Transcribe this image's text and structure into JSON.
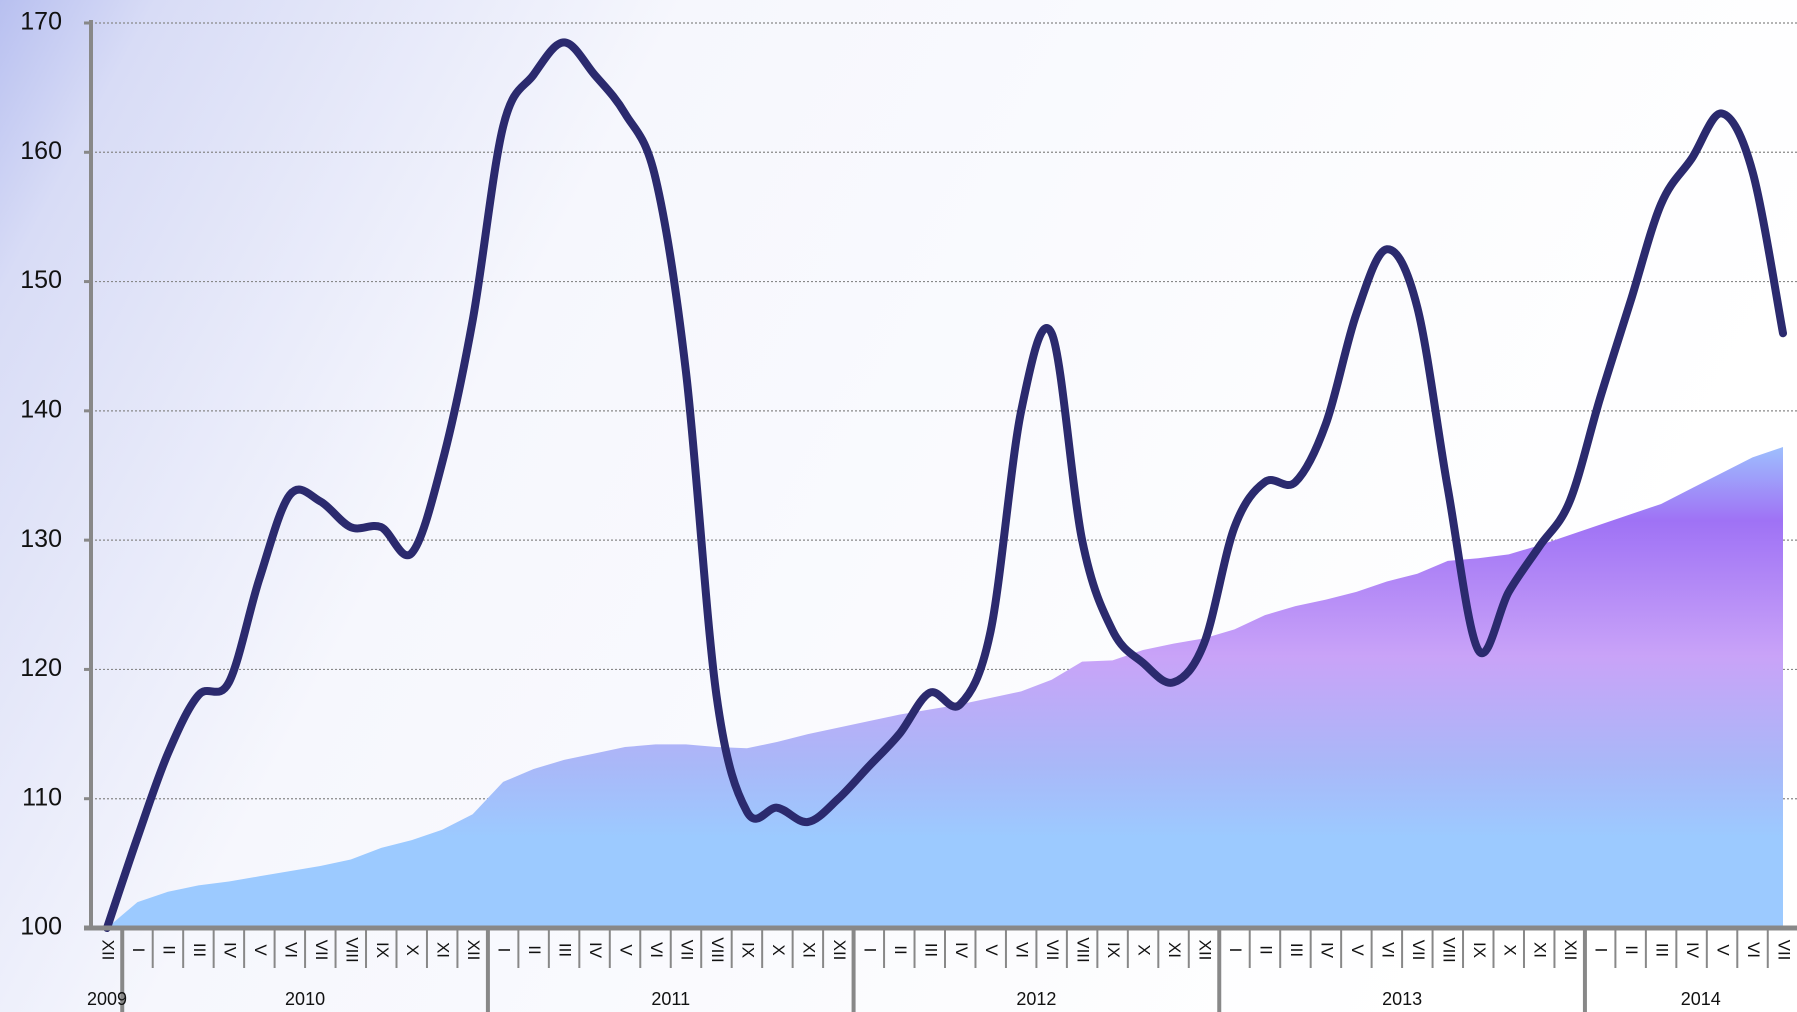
{
  "chart_data": {
    "type": "line",
    "categories": [
      "XII",
      "I",
      "II",
      "III",
      "IV",
      "V",
      "VI",
      "VII",
      "VIII",
      "IX",
      "X",
      "XI",
      "XII",
      "I",
      "II",
      "III",
      "IV",
      "V",
      "VI",
      "VII",
      "VIII",
      "IX",
      "X",
      "XI",
      "XII",
      "I",
      "II",
      "III",
      "IV",
      "V",
      "VI",
      "VII",
      "VIII",
      "IX",
      "X",
      "XI",
      "XII",
      "I",
      "II",
      "III",
      "IV",
      "V",
      "VI",
      "VII",
      "VIII",
      "IX",
      "X",
      "XI",
      "XII",
      "I",
      "II",
      "III",
      "IV",
      "V",
      "VI",
      "VII"
    ],
    "years": [
      "2009",
      "2010",
      "2011",
      "2012",
      "2013",
      "2014"
    ],
    "series": [
      {
        "kind": "area",
        "color": "#9f72f5",
        "values": [
          100,
          102,
          102.8,
          103.3,
          103.6,
          104,
          104.4,
          104.8,
          105.3,
          106.2,
          106.8,
          107.6,
          108.8,
          111.3,
          112.3,
          113,
          113.5,
          114,
          114.2,
          114.2,
          114,
          113.9,
          114.4,
          115,
          115.5,
          116,
          116.5,
          116.9,
          117.3,
          117.8,
          118.3,
          119.2,
          120.6,
          120.7,
          121.5,
          122,
          122.4,
          123.1,
          124.2,
          124.9,
          125.4,
          126,
          126.8,
          127.4,
          128.4,
          128.6,
          128.9,
          129.6,
          130.4,
          131.2,
          132,
          132.8,
          134,
          135.2,
          136.4,
          137.2
        ]
      },
      {
        "kind": "line",
        "color": "#2b2a6e",
        "values": [
          100,
          107,
          113.5,
          118,
          119,
          127,
          133.5,
          133,
          131,
          131,
          129,
          136,
          147,
          162,
          166,
          168.5,
          166,
          163,
          158,
          143,
          118,
          109,
          109.3,
          108.2,
          110,
          112.5,
          115,
          118.2,
          117.3,
          123,
          140,
          146,
          130,
          123,
          120.5,
          119,
          122,
          131,
          134.5,
          134.5,
          139,
          147.5,
          152.5,
          148,
          134,
          121.5,
          126,
          129.5,
          133,
          141,
          148.5,
          156,
          159.5,
          163,
          158.5,
          146
        ]
      }
    ],
    "ylim": [
      100,
      170
    ],
    "yticks": [
      100,
      110,
      120,
      130,
      140,
      150,
      160,
      170
    ],
    "grid": true
  }
}
